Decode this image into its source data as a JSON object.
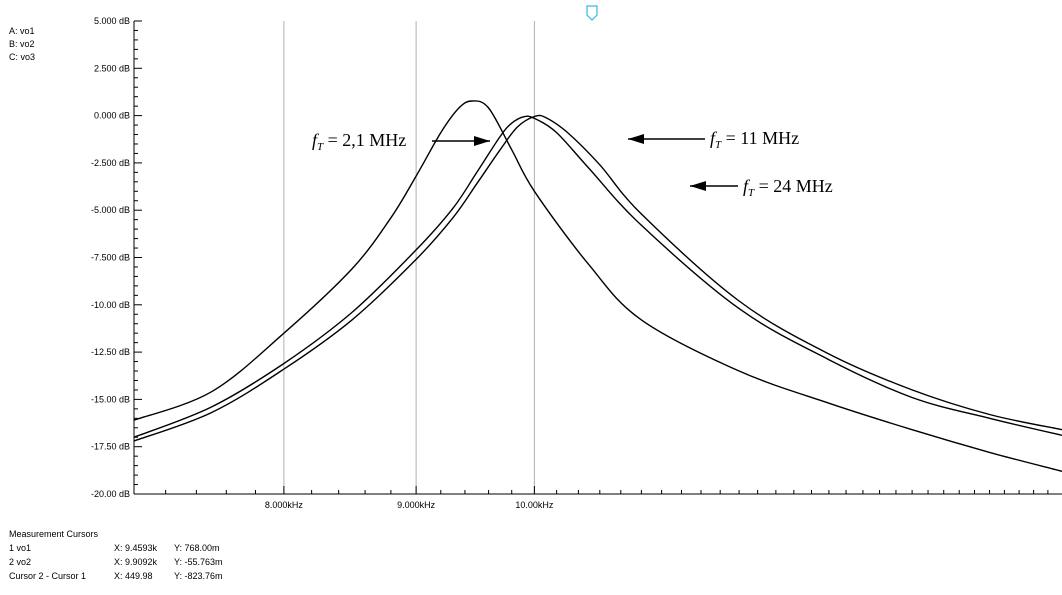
{
  "chart_data": {
    "type": "line",
    "title": "",
    "xlabel": "",
    "ylabel": "",
    "x_scale": "log",
    "x_unit": "Hz",
    "xlim": [
      7000,
      16000
    ],
    "ylim": [
      -20,
      5
    ],
    "x_ticks": [
      {
        "value": 8000,
        "label": "8.000kHz"
      },
      {
        "value": 9000,
        "label": "9.000kHz"
      },
      {
        "value": 10000,
        "label": "10.00kHz"
      }
    ],
    "y_ticks": [
      {
        "value": 5,
        "label": "5.000 dB"
      },
      {
        "value": 2.5,
        "label": "2.500 dB"
      },
      {
        "value": 0,
        "label": "0.000 dB"
      },
      {
        "value": -2.5,
        "label": "-2.500 dB"
      },
      {
        "value": -5,
        "label": "-5.000 dB"
      },
      {
        "value": -7.5,
        "label": "-7.500 dB"
      },
      {
        "value": -10,
        "label": "-10.00 dB"
      },
      {
        "value": -12.5,
        "label": "-12.50 dB"
      },
      {
        "value": -15,
        "label": "-15.00 dB"
      },
      {
        "value": -17.5,
        "label": "-17.50 dB"
      },
      {
        "value": -20,
        "label": "-20.00 dB"
      }
    ],
    "grid": "vertical",
    "series": [
      {
        "name": "vo1",
        "color": "#000000",
        "points": [
          [
            7000,
            -16.1
          ],
          [
            7500,
            -14.6
          ],
          [
            8000,
            -11.5
          ],
          [
            8500,
            -8.1
          ],
          [
            8800,
            -5.4
          ],
          [
            9000,
            -3.2
          ],
          [
            9200,
            -0.9
          ],
          [
            9350,
            0.4
          ],
          [
            9460,
            0.77
          ],
          [
            9600,
            0.4
          ],
          [
            9800,
            -1.8
          ],
          [
            10000,
            -4.0
          ],
          [
            10500,
            -7.9
          ],
          [
            11000,
            -10.8
          ],
          [
            12000,
            -13.5
          ],
          [
            13000,
            -15.2
          ],
          [
            14000,
            -16.6
          ],
          [
            15000,
            -17.8
          ],
          [
            16000,
            -18.8
          ]
        ]
      },
      {
        "name": "vo2",
        "color": "#000000",
        "points": [
          [
            7000,
            -17.0
          ],
          [
            7500,
            -15.4
          ],
          [
            8000,
            -13.1
          ],
          [
            8500,
            -10.4
          ],
          [
            9000,
            -7.1
          ],
          [
            9300,
            -4.9
          ],
          [
            9500,
            -3.0
          ],
          [
            9700,
            -1.1
          ],
          [
            9800,
            -0.4
          ],
          [
            9910,
            -0.06
          ],
          [
            10000,
            -0.15
          ],
          [
            10200,
            -0.9
          ],
          [
            10500,
            -2.8
          ],
          [
            11000,
            -5.8
          ],
          [
            12000,
            -10.2
          ],
          [
            13000,
            -12.9
          ],
          [
            14000,
            -14.9
          ],
          [
            15000,
            -16.0
          ],
          [
            16000,
            -16.9
          ]
        ]
      },
      {
        "name": "vo3",
        "color": "#000000",
        "points": [
          [
            7000,
            -17.2
          ],
          [
            7500,
            -15.7
          ],
          [
            8000,
            -13.4
          ],
          [
            8500,
            -10.8
          ],
          [
            9000,
            -7.6
          ],
          [
            9300,
            -5.4
          ],
          [
            9500,
            -3.6
          ],
          [
            9700,
            -1.8
          ],
          [
            9850,
            -0.6
          ],
          [
            10000,
            -0.05
          ],
          [
            10100,
            -0.1
          ],
          [
            10300,
            -0.9
          ],
          [
            10600,
            -2.6
          ],
          [
            11000,
            -5.2
          ],
          [
            12000,
            -9.8
          ],
          [
            13000,
            -12.6
          ],
          [
            14000,
            -14.5
          ],
          [
            15000,
            -15.8
          ],
          [
            16000,
            -16.6
          ]
        ]
      }
    ],
    "annotations": [
      {
        "text_main": "f",
        "text_sub": "T",
        "text_rest": " = 2,1 MHz",
        "target": "vo1",
        "arrow": "right"
      },
      {
        "text_main": "f",
        "text_sub": "T",
        "text_rest": " = 11 MHz",
        "target": "vo2",
        "arrow": "left"
      },
      {
        "text_main": "f",
        "text_sub": "T",
        "text_rest": " = 24 MHz",
        "target": "vo3",
        "arrow": "left"
      }
    ]
  },
  "legend": {
    "items": [
      "A: vo1",
      "B: vo2",
      "C: vo3"
    ]
  },
  "measurement": {
    "title": "Measurement Cursors",
    "rows": [
      {
        "label": "1   vo1",
        "x": "X: 9.4593k",
        "y": "Y: 768.00m"
      },
      {
        "label": "2   vo2",
        "x": "X: 9.9092k",
        "y": "Y: -55.763m"
      },
      {
        "label": "Cursor 2 - Cursor 1",
        "x": "X: 449.98",
        "y": "Y: -823.76m"
      }
    ]
  },
  "colors": {
    "curve": "#000000",
    "grid": "#b0b0b0",
    "axis": "#000000",
    "cursor_marker": "#39b8e6"
  }
}
